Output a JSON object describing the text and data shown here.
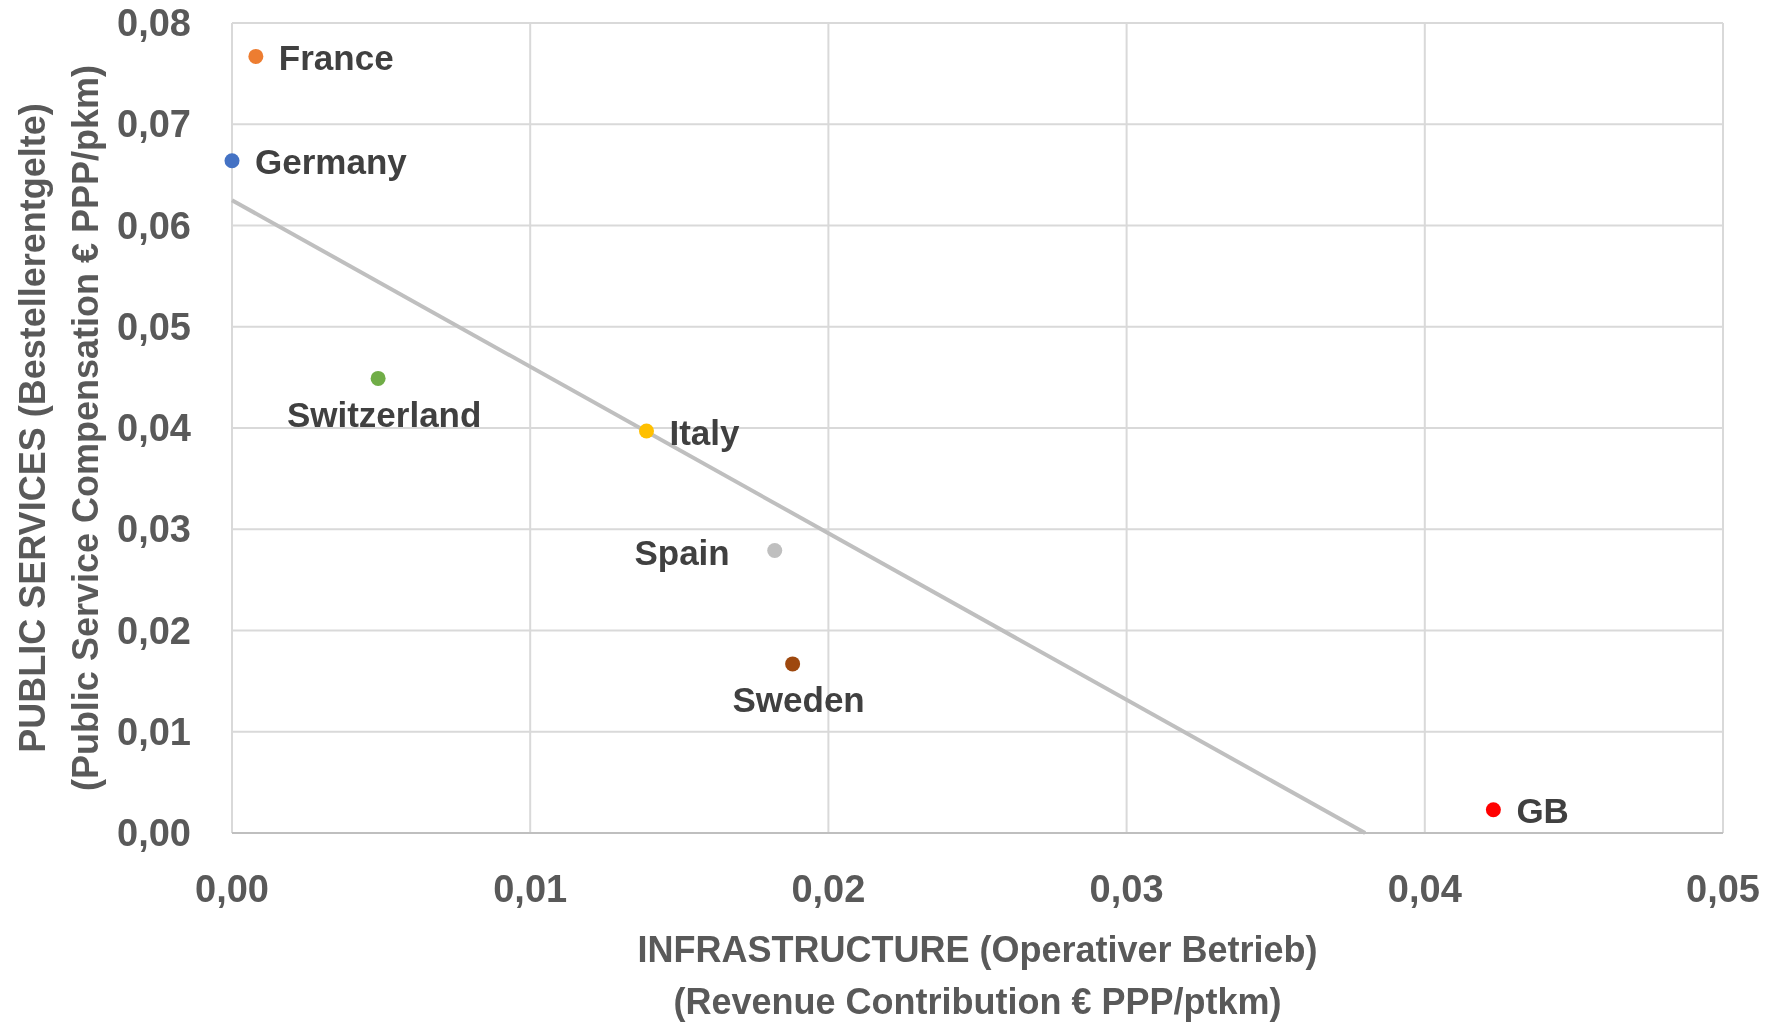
{
  "chart_data": {
    "type": "scatter",
    "xlabel": "INFRASTRUCTURE (Operativer Betrieb)\n(Revenue Contribution € PPP/ptkm)",
    "ylabel": "PUBLIC SERVICES (Bestellerentgelte)\n(Public Service Compensation € PPP/pkm)",
    "xlim": [
      0,
      0.05
    ],
    "xticks": [
      {
        "value": 0,
        "label": "0,00"
      },
      {
        "value": 0.01,
        "label": "0,01"
      },
      {
        "value": 0.02,
        "label": "0,02"
      },
      {
        "value": 0.03,
        "label": "0,03"
      },
      {
        "value": 0.04,
        "label": "0,04"
      },
      {
        "value": 0.05,
        "label": "0,05"
      }
    ],
    "ylim": [
      0,
      0.08
    ],
    "yticks": [
      {
        "value": 0,
        "label": "0,00"
      },
      {
        "value": 0.01,
        "label": "0,01"
      },
      {
        "value": 0.02,
        "label": "0,02"
      },
      {
        "value": 0.03,
        "label": "0,03"
      },
      {
        "value": 0.04,
        "label": "0,04"
      },
      {
        "value": 0.05,
        "label": "0,05"
      },
      {
        "value": 0.06,
        "label": "0,06"
      },
      {
        "value": 0.07,
        "label": "0,07"
      },
      {
        "value": 0.08,
        "label": "0,08"
      }
    ],
    "grid": true,
    "marker": "circle",
    "series": [
      {
        "type": "line",
        "color": "#bfbfbf",
        "marker": "none",
        "x": [
          0,
          0.038
        ],
        "values": [
          0.0625,
          0
        ]
      },
      {
        "name": "France",
        "color": "#ed7d31",
        "x": [
          0.0008
        ],
        "values": [
          0.0767
        ]
      },
      {
        "name": "Germany",
        "color": "#4472c4",
        "x": [
          0
        ],
        "values": [
          0.0664
        ]
      },
      {
        "name": "Switzerland",
        "color": "#70ad47",
        "x": [
          0.0049
        ],
        "values": [
          0.0449
        ]
      },
      {
        "name": "Italy",
        "color": "#ffc000",
        "x": [
          0.0139
        ],
        "values": [
          0.0397
        ]
      },
      {
        "name": "Spain",
        "color": "#bfbfbf",
        "x": [
          0.0182
        ],
        "values": [
          0.0279
        ]
      },
      {
        "name": "Sweden",
        "color": "#9e480e",
        "x": [
          0.0188
        ],
        "values": [
          0.0167
        ]
      },
      {
        "name": "GB",
        "color": "#ff0000",
        "x": [
          0.0423
        ],
        "values": [
          0.0023
        ]
      }
    ]
  }
}
